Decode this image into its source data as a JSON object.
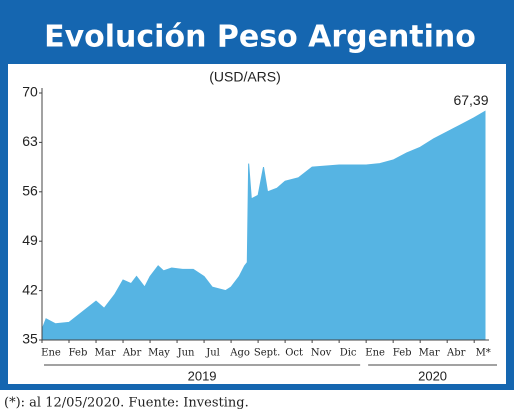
{
  "chart_data": {
    "type": "area",
    "title": "Evolución Peso Argentino",
    "subtitle": "(USD/ARS)",
    "color": "#56b4e3",
    "x": [
      0,
      0.15,
      0.5,
      1.0,
      1.5,
      2.0,
      2.3,
      2.7,
      3.0,
      3.3,
      3.5,
      3.8,
      4.0,
      4.3,
      4.5,
      4.8,
      5.2,
      5.6,
      6.0,
      6.3,
      6.8,
      7.0,
      7.3,
      7.5,
      7.6,
      7.65,
      7.75,
      8.0,
      8.2,
      8.35,
      8.7,
      9.0,
      9.5,
      10.0,
      11.0,
      12.0,
      12.5,
      13.0,
      13.5,
      14.0,
      14.5,
      15.0,
      15.5,
      16.0,
      16.4
    ],
    "values": [
      36.5,
      38,
      37.3,
      37.5,
      39,
      40.5,
      39.5,
      41.5,
      43.5,
      43,
      44,
      42.5,
      44,
      45.5,
      44.8,
      45.2,
      45,
      45,
      44,
      42.5,
      42,
      42.5,
      44,
      45.5,
      46,
      60,
      55,
      55.5,
      59.5,
      56,
      56.5,
      57.5,
      58,
      59.5,
      59.8,
      59.8,
      60,
      60.5,
      61.5,
      62.3,
      63.5,
      64.5,
      65.5,
      66.5,
      67.39
    ],
    "value_labels": [
      null,
      null,
      null,
      null,
      null,
      null,
      null,
      null,
      null,
      null,
      null,
      null,
      null,
      null,
      null,
      null,
      null,
      null,
      null,
      null,
      null,
      null,
      null,
      null,
      null,
      null,
      null,
      null,
      null,
      null,
      null,
      null,
      null,
      null,
      null,
      null,
      null,
      null,
      null,
      null,
      null,
      null,
      null,
      null,
      "67,39"
    ],
    "xlim": [
      0,
      16.4
    ],
    "xticks": [
      {
        "value": 0,
        "label": "Ene"
      },
      {
        "value": 1,
        "label": "Feb"
      },
      {
        "value": 2,
        "label": "Mar"
      },
      {
        "value": 3,
        "label": "Abr"
      },
      {
        "value": 4,
        "label": "May"
      },
      {
        "value": 5,
        "label": "Jun"
      },
      {
        "value": 6,
        "label": "Jul"
      },
      {
        "value": 7,
        "label": "Ago"
      },
      {
        "value": 8,
        "label": "Sept."
      },
      {
        "value": 9,
        "label": "Oct"
      },
      {
        "value": 10,
        "label": "Nov"
      },
      {
        "value": 11,
        "label": "Dic"
      },
      {
        "value": 12,
        "label": "Ene"
      },
      {
        "value": 13,
        "label": "Feb"
      },
      {
        "value": 14,
        "label": "Mar"
      },
      {
        "value": 15,
        "label": "Abr"
      },
      {
        "value": 16,
        "label": "M*"
      }
    ],
    "years": [
      {
        "label": "2019",
        "start": 0,
        "end": 12
      },
      {
        "label": "2020",
        "start": 12,
        "end": 16.4
      }
    ],
    "ylim": [
      35,
      70
    ],
    "yticks": [
      35,
      42,
      49,
      56,
      63,
      70
    ],
    "footnote": "(*): al 12/05/2020. Fuente: Investing."
  }
}
